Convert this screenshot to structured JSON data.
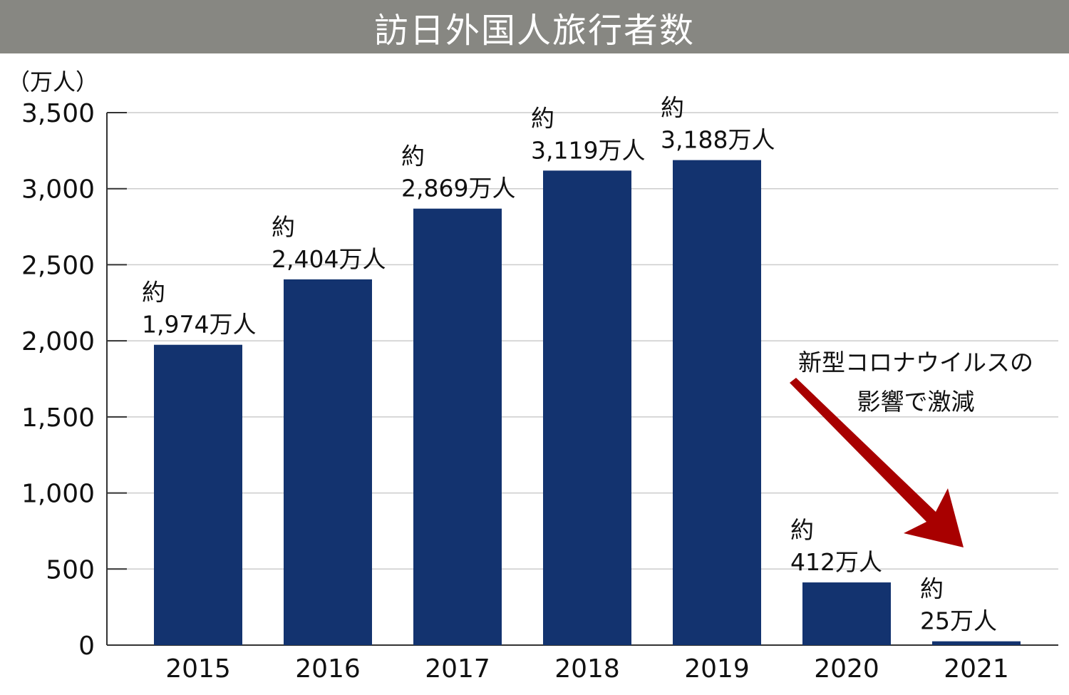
{
  "chart_data": {
    "type": "bar",
    "title": "訪日外国人旅行者数",
    "ylabel": "（万人）",
    "xlabel": "",
    "ylim": [
      0,
      3500
    ],
    "yticks": [
      0,
      500,
      1000,
      1500,
      2000,
      2500,
      3000,
      3500
    ],
    "ytick_labels": [
      "0",
      "500",
      "1,000",
      "1,500",
      "2,000",
      "2,500",
      "3,000",
      "3,500"
    ],
    "categories": [
      "2015",
      "2016",
      "2017",
      "2018",
      "2019",
      "2020",
      "2021"
    ],
    "values": [
      1974,
      2404,
      2869,
      3119,
      3188,
      412,
      25
    ],
    "data_labels": [
      {
        "prefix": "約",
        "text": "1,974万人"
      },
      {
        "prefix": "約",
        "text": "2,404万人"
      },
      {
        "prefix": "約",
        "text": "2,869万人"
      },
      {
        "prefix": "約",
        "text": "3,119万人"
      },
      {
        "prefix": "約",
        "text": "3,188万人"
      },
      {
        "prefix": "約",
        "text": "412万人"
      },
      {
        "prefix": "約",
        "text": "25万人"
      }
    ],
    "annotation": {
      "lines": [
        "新型コロナウイルスの",
        "影響で激減"
      ],
      "from_category": "2019",
      "to_category": "2021"
    },
    "grid": true
  },
  "colors": {
    "title_bg": "#878782",
    "title_text": "#ffffff",
    "bar": "#13336f",
    "grid": "#cccccc",
    "axis": "#333333",
    "arrow": "#a80000"
  }
}
